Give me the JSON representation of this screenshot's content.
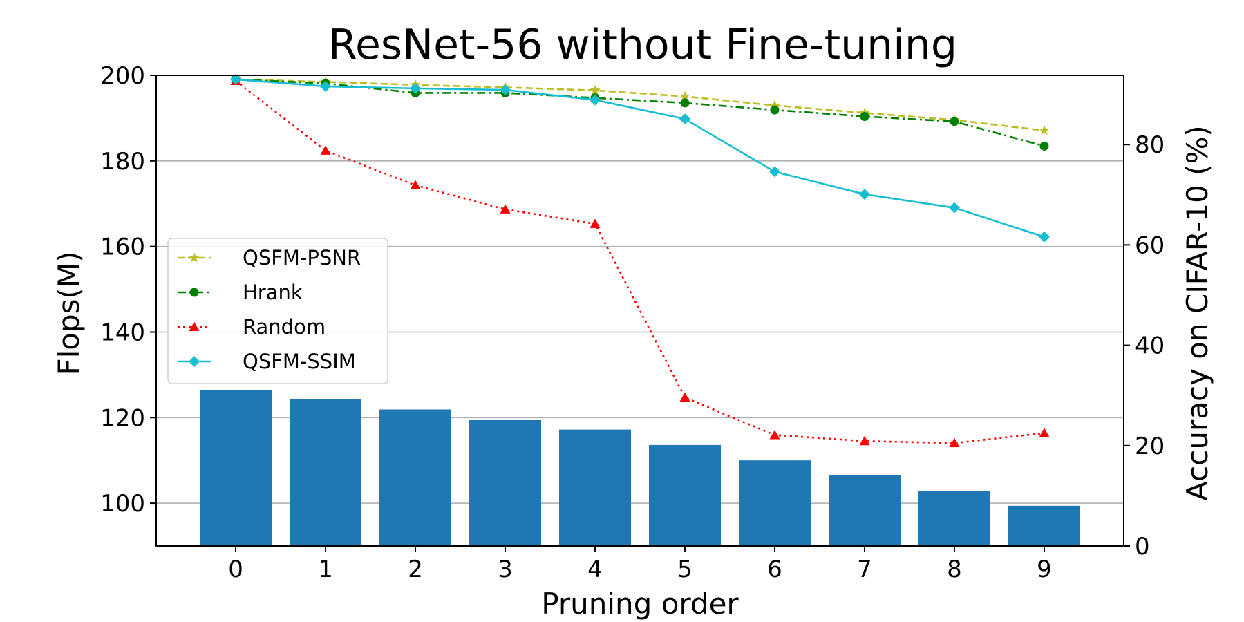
{
  "chart_data": {
    "type": "bar",
    "title": "ResNet-56 without Fine-tuning",
    "xlabel": "Pruning order",
    "ylabel": "Flops(M)",
    "y2label": "Accuracy on CIFAR-10 (%)",
    "x": [
      0,
      1,
      2,
      3,
      4,
      5,
      6,
      7,
      8,
      9
    ],
    "xticks": [
      "0",
      "1",
      "2",
      "3",
      "4",
      "5",
      "6",
      "7",
      "8",
      "9"
    ],
    "ylim": [
      90,
      200
    ],
    "yticks": [
      100,
      120,
      140,
      160,
      180,
      200
    ],
    "y2lim": [
      0,
      93.8
    ],
    "y2ticks": [
      0,
      20,
      40,
      60,
      80
    ],
    "grid": "horizontal",
    "legend_position": "center-left",
    "bars": {
      "axis": "left",
      "color": "#1f77b4",
      "values": [
        126.5,
        124.3,
        121.9,
        119.4,
        117.2,
        113.6,
        110.0,
        106.5,
        102.9,
        99.4
      ]
    },
    "series": [
      {
        "name": "QSFM-PSNR",
        "axis": "right",
        "color": "#bcbd22",
        "dash": "dashed",
        "marker": "star",
        "values": [
          93.0,
          92.5,
          91.9,
          91.4,
          90.8,
          89.6,
          87.8,
          86.3,
          84.9,
          82.8
        ]
      },
      {
        "name": "Hrank",
        "axis": "right",
        "color": "#008000",
        "dash": "dashdot",
        "marker": "circle",
        "values": [
          93.0,
          92.2,
          90.3,
          90.3,
          89.3,
          88.3,
          86.9,
          85.6,
          84.6,
          79.7
        ]
      },
      {
        "name": "Random",
        "axis": "right",
        "color": "#ff0000",
        "dash": "dotted",
        "marker": "triangle",
        "values": [
          92.7,
          78.8,
          71.9,
          67.1,
          64.2,
          29.6,
          22.1,
          20.9,
          20.5,
          22.5
        ]
      },
      {
        "name": "QSFM-SSIM",
        "axis": "right",
        "color": "#17becf",
        "dash": "solid",
        "marker": "diamond",
        "values": [
          93.0,
          91.6,
          91.2,
          90.9,
          88.9,
          85.1,
          74.6,
          70.1,
          67.4,
          61.6
        ]
      }
    ]
  }
}
